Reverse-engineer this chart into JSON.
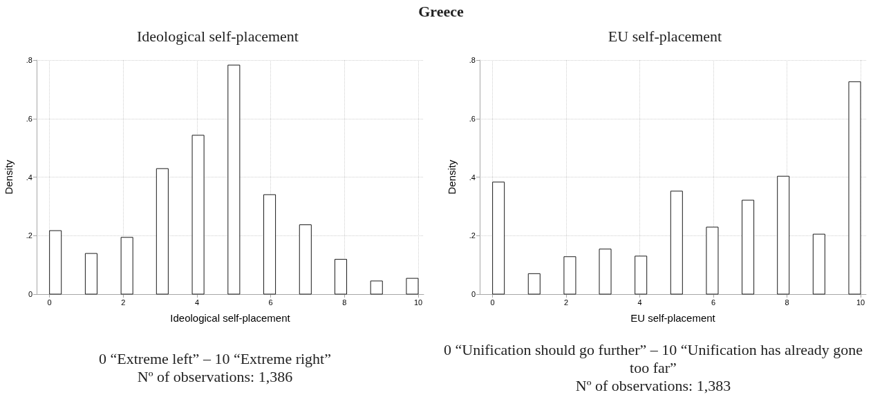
{
  "chart_data": [
    {
      "type": "other",
      "title": "Greece"
    },
    {
      "type": "bar",
      "title": "Ideological self-placement",
      "xlabel": "Ideological self-placement",
      "ylabel": "Density",
      "annotations": [
        "0 “Extreme left” – 10 “Extreme right”",
        "Nº of observations: 1,386"
      ],
      "x": [
        0.16,
        1.13,
        2.1,
        3.06,
        4.03,
        5.0,
        5.97,
        6.94,
        7.9,
        8.87,
        9.84
      ],
      "values": [
        0.217,
        0.139,
        0.194,
        0.429,
        0.543,
        0.783,
        0.34,
        0.237,
        0.119,
        0.045,
        0.054
      ],
      "color": "#ffffff",
      "xlim": [
        -0.35,
        10.15
      ],
      "ylim": [
        0,
        0.8
      ],
      "xticks": [
        0,
        2,
        4,
        6,
        8,
        10
      ],
      "yticks": [
        0,
        {
          "value": 0.2,
          "label": ".2"
        },
        {
          "value": 0.4,
          "label": ".4"
        },
        {
          "value": 0.6,
          "label": ".6"
        },
        {
          "value": 0.8,
          "label": ".8"
        }
      ],
      "grid": true
    },
    {
      "type": "bar",
      "title": "EU self-placement",
      "xlabel": "EU self-placement",
      "ylabel": "Density",
      "annotations": [
        "0 “Unification should go further” – 10 “Unification has already gone too far”",
        "Nº of observations: 1,383"
      ],
      "x": [
        0.16,
        1.13,
        2.1,
        3.06,
        4.03,
        5.0,
        5.97,
        6.94,
        7.9,
        8.87,
        9.84
      ],
      "values": [
        0.383,
        0.07,
        0.128,
        0.154,
        0.13,
        0.352,
        0.229,
        0.321,
        0.403,
        0.205,
        0.726
      ],
      "color": "#ffffff",
      "xlim": [
        -0.35,
        10.15
      ],
      "ylim": [
        0,
        0.8
      ],
      "xticks": [
        0,
        2,
        4,
        6,
        8,
        10
      ],
      "yticks": [
        0,
        {
          "value": 0.2,
          "label": ".2"
        },
        {
          "value": 0.4,
          "label": ".4"
        },
        {
          "value": 0.6,
          "label": ".6"
        },
        {
          "value": 0.8,
          "label": ".8"
        }
      ],
      "grid": true
    }
  ]
}
